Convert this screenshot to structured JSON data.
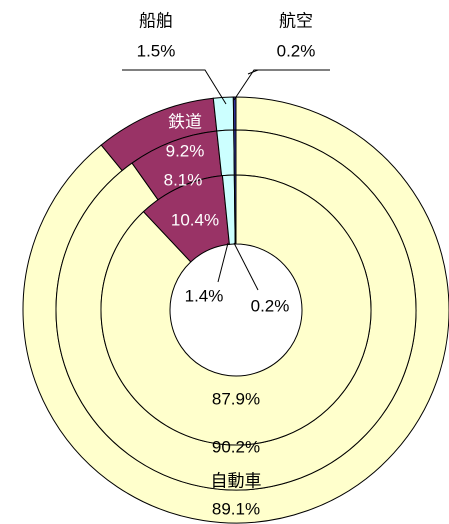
{
  "chart_data": {
    "type": "donut",
    "categories": [
      "鉄道",
      "船舶",
      "航空",
      "自動車"
    ],
    "colors": [
      "#993366",
      "#ccffff",
      "#333399",
      "#ffffcc"
    ],
    "series": [
      {
        "values": [
          9.2,
          1.5,
          0.2,
          89.1
        ],
        "value_labels": [
          "9.2%",
          "1.5%",
          "0.2%",
          "89.1%"
        ]
      },
      {
        "values": [
          8.1,
          1.5,
          0.2,
          90.2
        ],
        "value_labels": [
          "8.1%",
          null,
          null,
          "90.2%"
        ]
      },
      {
        "values": [
          10.4,
          1.4,
          0.2,
          87.9
        ],
        "value_labels": [
          "10.4%",
          "1.4%",
          "0.2%",
          "87.9%"
        ]
      }
    ]
  }
}
